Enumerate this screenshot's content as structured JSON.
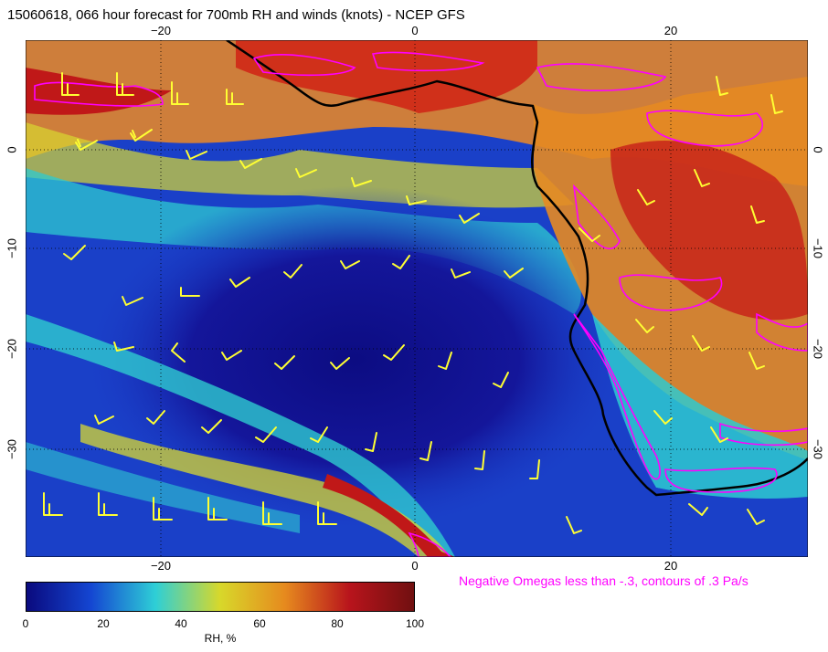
{
  "title": "15060618, 066 hour forecast for 700mb RH and winds (knots) - NCEP GFS",
  "note": "Negative Omegas less than -.3, contours of .3 Pa/s",
  "axes": {
    "lon_top": [
      "−20",
      "0",
      "20"
    ],
    "lon_bottom": [
      "−20",
      "0",
      "20"
    ],
    "lat_left": [
      "0",
      "−10",
      "−20",
      "−30"
    ],
    "lat_right": [
      "0",
      "−10",
      "−20",
      "−30"
    ]
  },
  "colorbar": {
    "ticks": [
      "0",
      "20",
      "40",
      "60",
      "80",
      "100"
    ],
    "label": "RH, %",
    "colors": [
      "#0a0a7e",
      "#1446d2",
      "#2ecfd6",
      "#d8d82a",
      "#e68a1e",
      "#b8141c",
      "#701010"
    ]
  },
  "colors": {
    "barbs": "#ffff33",
    "omega_contours": "#ff00ff",
    "coastline": "#000000"
  },
  "chart_data": {
    "type": "heatmap",
    "variable": "RH, %",
    "range": [
      0,
      100
    ],
    "lon_range": [
      -31,
      31
    ],
    "lat_range": [
      -39,
      11
    ],
    "features": [
      "700mb relative humidity shading",
      "wind barbs (knots)",
      "negative omega contours"
    ]
  }
}
